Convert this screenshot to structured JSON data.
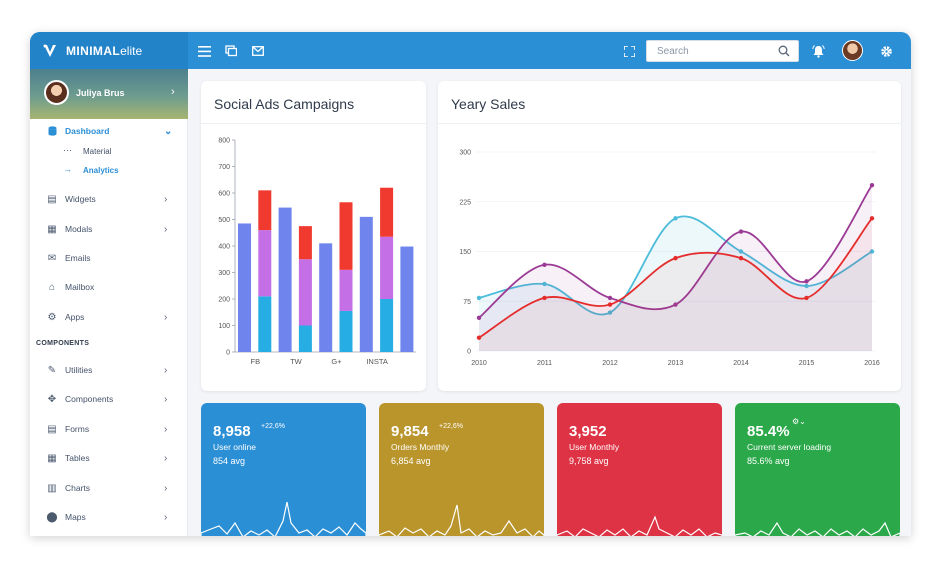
{
  "brand": {
    "bold": "MINIMAL",
    "light": "elite"
  },
  "colors": {
    "primary": "#2b8fd6",
    "stat_blue": "#2b8fd6",
    "stat_gold": "#b9952c",
    "stat_red": "#de3345",
    "stat_green": "#2aa84a"
  },
  "topbar": {
    "search_placeholder": "Search"
  },
  "user": {
    "name": "Juliya Brus"
  },
  "sidebar": {
    "items": [
      {
        "label": "Dashboard",
        "icon": "database-icon",
        "active": true
      },
      {
        "label": "Widgets",
        "icon": "widgets-icon"
      },
      {
        "label": "Modals",
        "icon": "gift-icon"
      },
      {
        "label": "Emails",
        "icon": "mail-icon"
      },
      {
        "label": "Mailbox",
        "icon": "mailbox-icon"
      },
      {
        "label": "Apps",
        "icon": "gear-icon"
      },
      {
        "label": "Utilities",
        "icon": "pen-icon"
      },
      {
        "label": "Components",
        "icon": "move-icon"
      },
      {
        "label": "Forms",
        "icon": "form-icon"
      },
      {
        "label": "Tables",
        "icon": "table-icon"
      },
      {
        "label": "Charts",
        "icon": "chart-icon"
      },
      {
        "label": "Maps",
        "icon": "map-pin-icon"
      }
    ],
    "sub_items": [
      {
        "label": "Material",
        "icon": "dots-icon"
      },
      {
        "label": "Analytics",
        "icon": "arrow-right-icon",
        "active": true
      }
    ],
    "section": "COMPONENTS"
  },
  "cards": {
    "social_title": "Social Ads Campaigns",
    "sales_title": "Yeary Sales"
  },
  "chart_data": [
    {
      "type": "bar",
      "title": "Social Ads Campaigns",
      "ylim": [
        0,
        800
      ],
      "yticks": [
        "0",
        "100",
        "200",
        "300",
        "400",
        "500",
        "600",
        "700",
        "800"
      ],
      "xticks": [
        "FB",
        "TW",
        "G+",
        "INSTA"
      ],
      "groups": [
        {
          "category": "FB",
          "stacks": [
            {
              "blue": 485
            },
            {
              "cyan": 210,
              "violet": 250,
              "red": 150
            }
          ]
        },
        {
          "category": "TW",
          "stacks": [
            {
              "blue": 545
            },
            {
              "cyan": 100,
              "violet": 250,
              "red": 125
            }
          ]
        },
        {
          "category": "G+",
          "stacks": [
            {
              "blue": 410
            },
            {
              "cyan": 155,
              "violet": 155,
              "red": 255
            }
          ]
        },
        {
          "category": "INSTA",
          "stacks": [
            {
              "blue": 510
            },
            {
              "cyan": 200,
              "violet": 235,
              "red": 185
            },
            {
              "blue": 398
            }
          ]
        }
      ],
      "colors": {
        "blue": "#6f84ec",
        "cyan": "#26ade4",
        "violet": "#c56fe6",
        "red": "#f03a2f"
      },
      "grid": false
    },
    {
      "type": "line",
      "title": "Yeary Sales",
      "x": [
        "2010",
        "2011",
        "2012",
        "2013",
        "2014",
        "2015",
        "2016"
      ],
      "ylim": [
        0,
        300
      ],
      "yticks": [
        "0",
        "75",
        "150",
        "225",
        "300"
      ],
      "series": [
        {
          "color": "#4bbcd9",
          "values": [
            80,
            101,
            58,
            200,
            150,
            98,
            150
          ]
        },
        {
          "color": "#9b3a95",
          "values": [
            50,
            130,
            80,
            70,
            180,
            105,
            250
          ]
        },
        {
          "color": "#e52c2c",
          "values": [
            20,
            80,
            70,
            140,
            140,
            80,
            200
          ]
        }
      ],
      "grid": true
    }
  ],
  "stats": [
    {
      "value": "8,958",
      "pct": "+22,6%",
      "label": "User online",
      "avg": "854 avg",
      "color": "#2b8fd6"
    },
    {
      "value": "9,854",
      "pct": "+22,6%",
      "label": "Orders Monthly",
      "avg": "6,854 avg",
      "color": "#b9952c"
    },
    {
      "value": "3,952",
      "pct": "",
      "label": "User Monthly",
      "avg": "9,758 avg",
      "color": "#de3345"
    },
    {
      "value": "85.4%",
      "pct": "",
      "label": "Current server loading",
      "avg": "85.6% avg",
      "color": "#2aa84a"
    }
  ]
}
